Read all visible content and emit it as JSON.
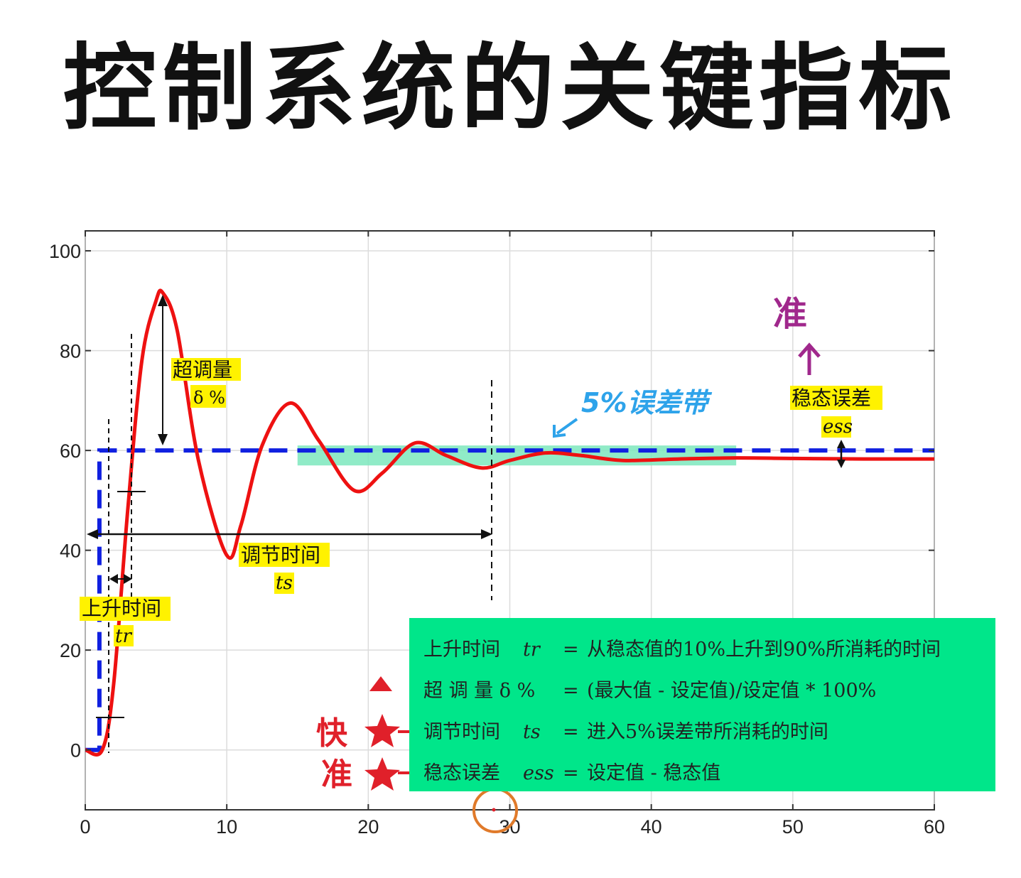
{
  "title": "控制系统的关键指标",
  "chart_data": {
    "type": "line",
    "xlim": [
      0,
      60
    ],
    "ylim": [
      -12,
      104
    ],
    "x_ticks": [
      "0",
      "10",
      "20",
      "30",
      "40",
      "50",
      "60"
    ],
    "y_ticks": [
      "0",
      "20",
      "40",
      "60",
      "80",
      "100"
    ],
    "grid": true,
    "series": [
      {
        "name": "setpoint",
        "style": "dashed",
        "color": "#1020e0",
        "x": [
          0,
          1,
          1,
          60
        ],
        "y": [
          0,
          0,
          60,
          60
        ]
      },
      {
        "name": "response",
        "style": "solid",
        "color": "#ee1111",
        "x": [
          0,
          1.2,
          2,
          3,
          4,
          5,
          5.5,
          6.5,
          8,
          10,
          11,
          12.5,
          14.5,
          16.5,
          19,
          21,
          23.3,
          25.5,
          28,
          30,
          32.5,
          35,
          38,
          42,
          46,
          50,
          55,
          60
        ],
        "y": [
          0,
          0,
          13,
          48,
          78,
          90,
          91.5,
          84,
          58,
          39,
          45,
          61,
          69.5,
          62,
          52,
          55.5,
          61.5,
          59,
          56.5,
          58,
          59.5,
          59,
          58,
          58.3,
          58.5,
          58.4,
          58.3,
          58.3
        ]
      }
    ],
    "band": {
      "label": "5%误差带",
      "x_range": [
        15,
        46
      ],
      "y_range": [
        57,
        61
      ],
      "color": "#7de8bd"
    }
  },
  "annotations": {
    "overshoot": {
      "label": "超调量",
      "symbol": "δ %"
    },
    "settling": {
      "label": "调节时间",
      "symbol": "ts"
    },
    "rise": {
      "label": "上升时间",
      "symbol": "tr"
    },
    "steady": {
      "label": "稳态误差",
      "symbol": "ess"
    },
    "band_label": "5%误差带",
    "accurate_top": "准",
    "fast": "快",
    "accurate": "准"
  },
  "info_box": {
    "rows": [
      {
        "name": "上升时间",
        "sym": "tr",
        "eq": "=",
        "desc": "从稳态值的10%上升到90%所消耗的时间"
      },
      {
        "name": "超 调 量 δ %",
        "sym": "",
        "eq": "=",
        "desc": "(最大值 - 设定值)/设定值 * 100%"
      },
      {
        "name": "调节时间",
        "sym": "ts",
        "eq": "=",
        "desc": "进入5%误差带所消耗的时间"
      },
      {
        "name": "稳态误差",
        "sym": "ess",
        "eq": "=",
        "desc": "设定值 - 稳态值"
      }
    ]
  },
  "colors": {
    "response": "#ee1111",
    "setpoint": "#1020e0",
    "box": "#00e68a",
    "highlight": "#fff200"
  }
}
